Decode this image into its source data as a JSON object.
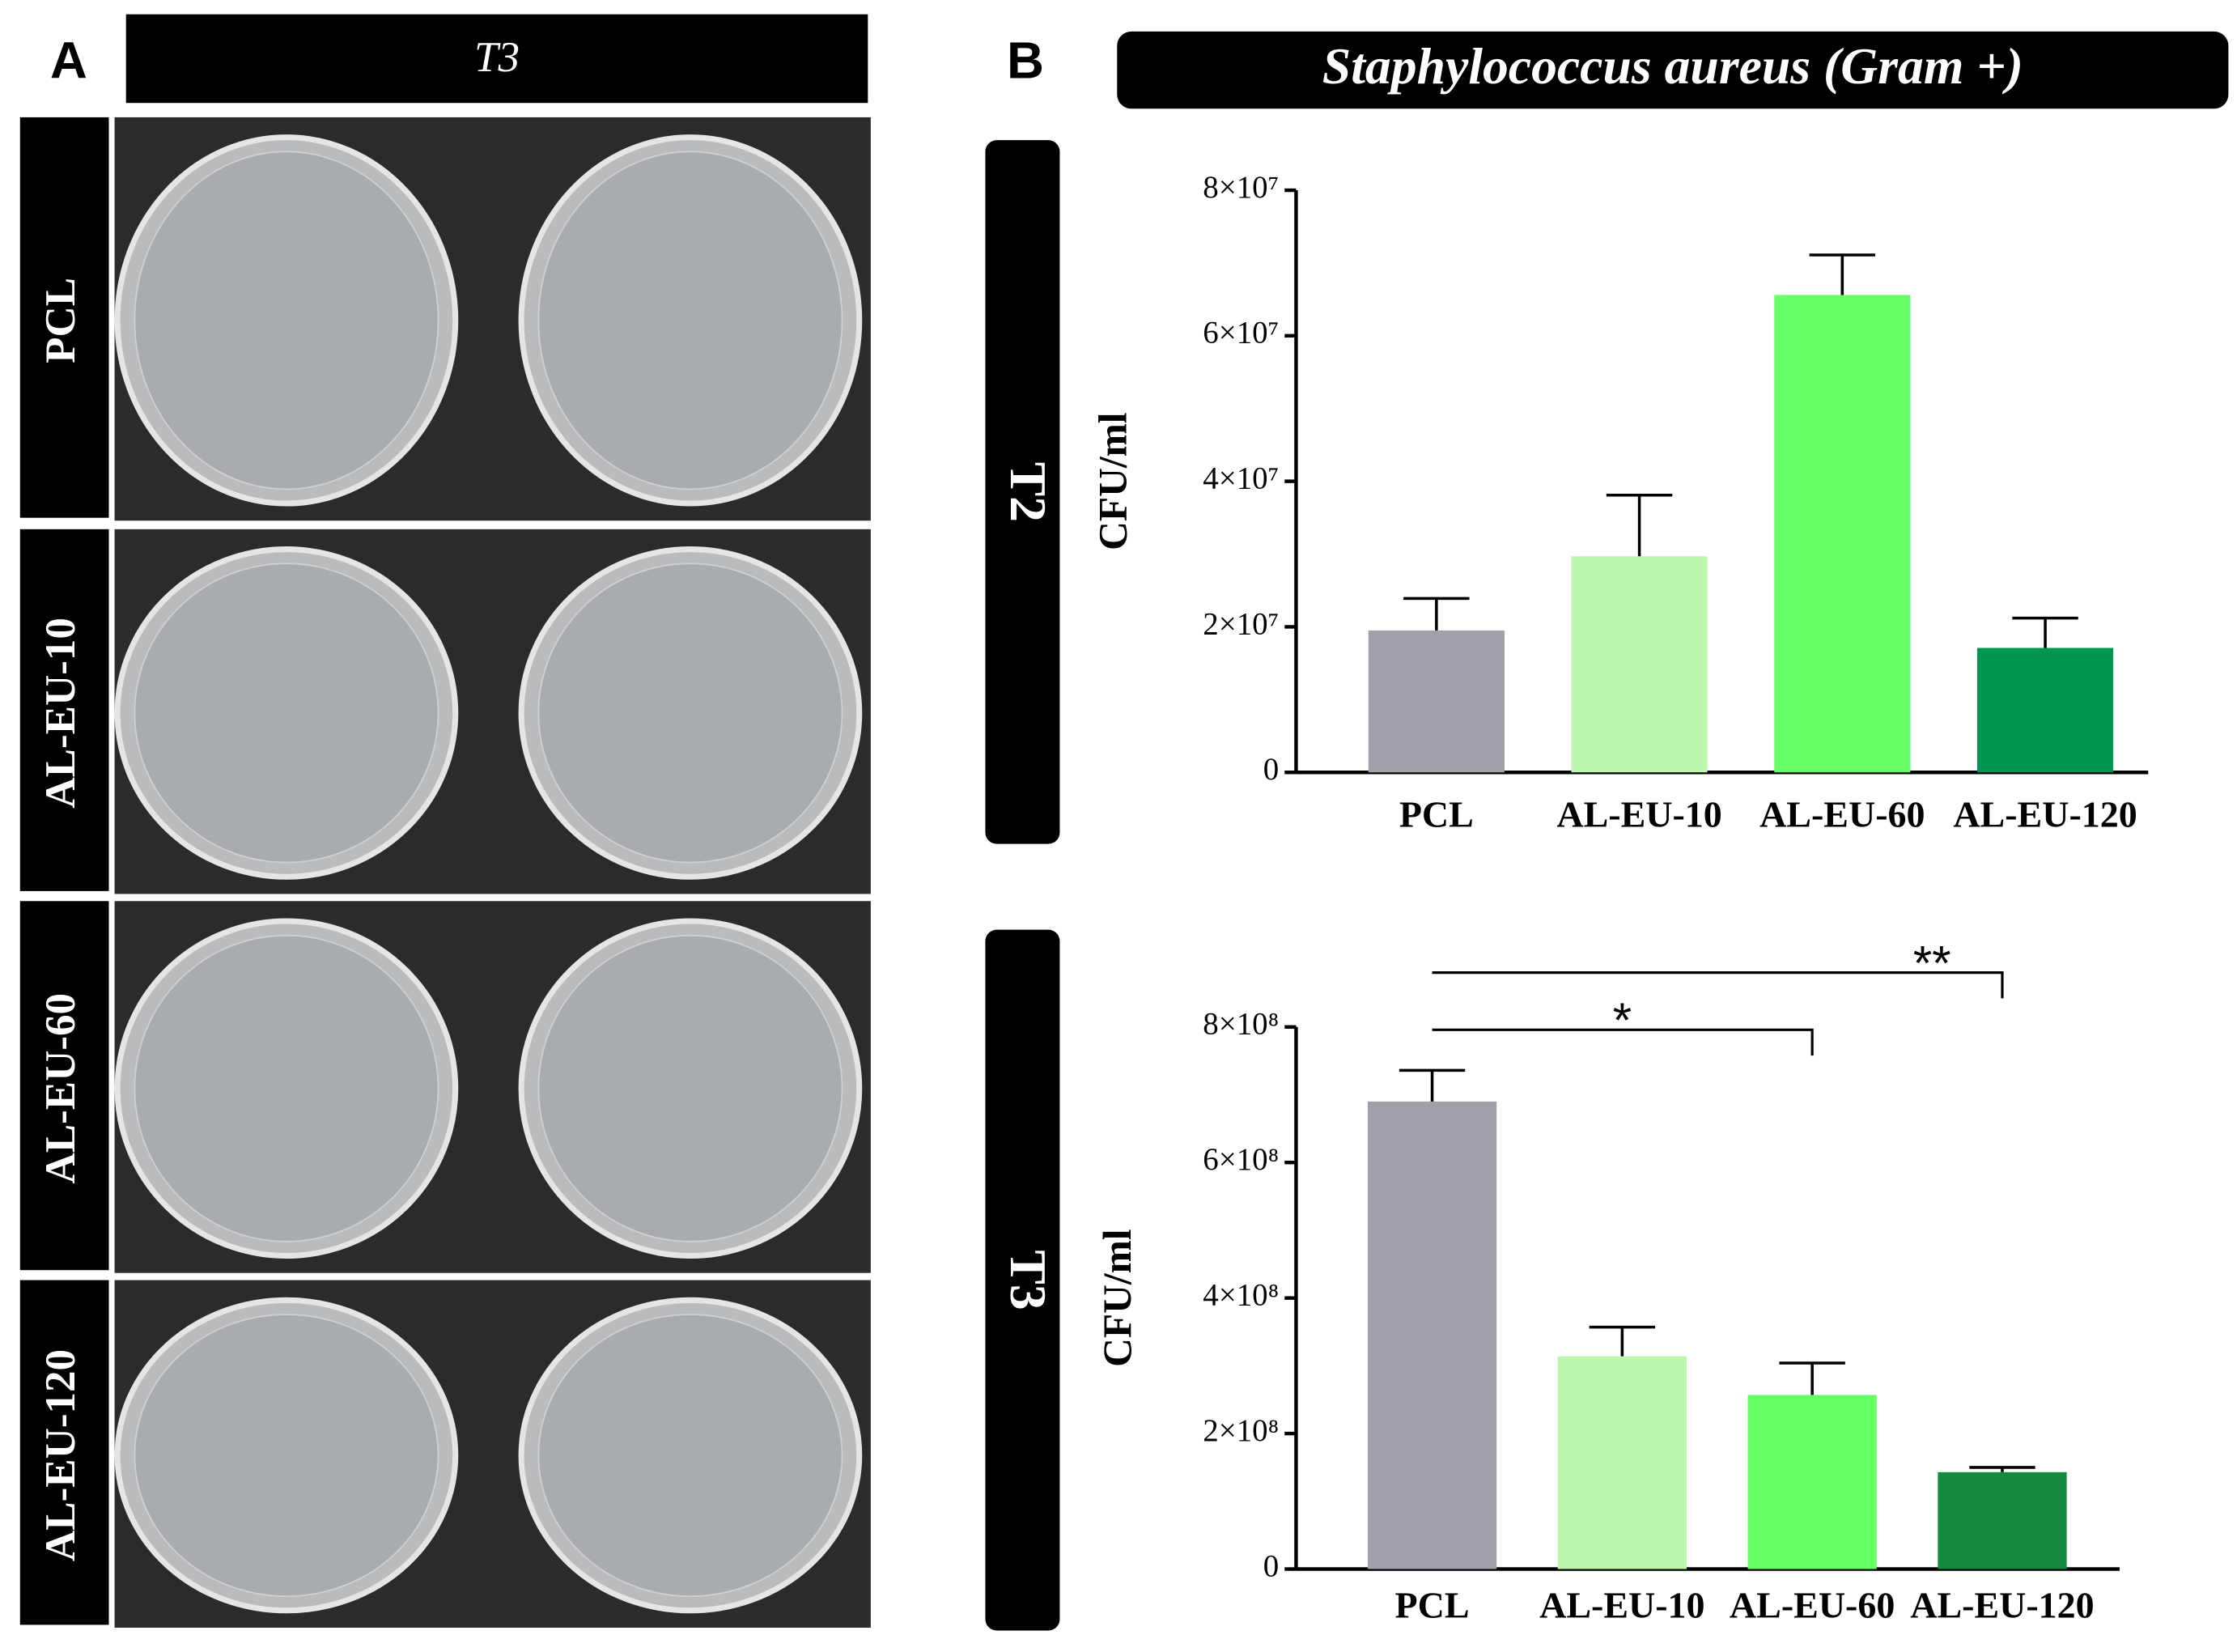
{
  "panel_a": {
    "label": "A",
    "header": "T3",
    "rows": [
      "PCL",
      "AL-EU-10",
      "AL-EU-60",
      "AL-EU-120"
    ]
  },
  "panel_b": {
    "label": "B",
    "title": "Staphylococcus aureus (Gram +)"
  },
  "chart_data": [
    {
      "type": "bar",
      "panel_label": "T2",
      "ylabel": "CFU/ml",
      "categories": [
        "PCL",
        "AL-EU-10",
        "AL-EU-60",
        "AL-EU-120"
      ],
      "values": [
        19500000,
        29700000,
        65600000,
        17100000
      ],
      "errors": [
        4400000,
        8400000,
        5500000,
        4100000
      ],
      "colors": [
        "#a0a0a8",
        "#bdf7ad",
        "#66ff66",
        "#00964f"
      ],
      "ylim": [
        0,
        80000000
      ],
      "yticks": [
        0,
        {
          "value": 20000000,
          "label": "2×10⁷"
        },
        {
          "value": 40000000,
          "label": "4×10⁷"
        },
        {
          "value": 60000000,
          "label": "6×10⁷"
        },
        {
          "value": 80000000,
          "label": "8×10⁷"
        }
      ]
    },
    {
      "type": "bar",
      "panel_label": "T3",
      "ylabel": "CFU/ml",
      "categories": [
        "PCL",
        "AL-EU-10",
        "AL-EU-60",
        "AL-EU-120"
      ],
      "values": [
        690000000,
        314000000,
        257000000,
        143000000
      ],
      "errors": [
        46000000,
        43000000,
        47000000,
        7000000
      ],
      "colors": [
        "#a0a0a8",
        "#bdf7ad",
        "#66ff66",
        "#138a40"
      ],
      "ylim": [
        0,
        800000000
      ],
      "yticks": [
        0,
        {
          "value": 200000000,
          "label": "2×10⁸"
        },
        {
          "value": 400000000,
          "label": "4×10⁸"
        },
        {
          "value": 600000000,
          "label": "6×10⁸"
        },
        {
          "value": 800000000,
          "label": "8×10⁸"
        }
      ],
      "annotations": [
        {
          "text": "*",
          "between": [
            "PCL",
            "AL-EU-60"
          ]
        },
        {
          "text": "**",
          "between": [
            "PCL",
            "AL-EU-120"
          ]
        }
      ]
    }
  ]
}
